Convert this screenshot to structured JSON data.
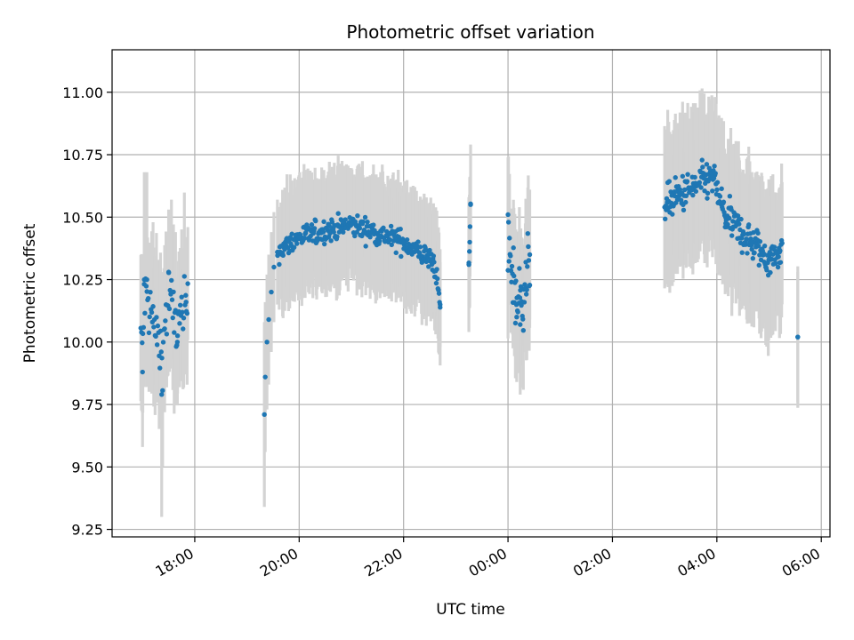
{
  "chart_data": {
    "type": "scatter",
    "title": "Photometric offset variation",
    "xlabel": "UTC time",
    "ylabel": "Photometric offset",
    "x_unit": "UTC time (HH:MM, observing night crossing midnight)",
    "xlim": [
      "16:25",
      "06:10"
    ],
    "ylim": [
      9.22,
      11.17
    ],
    "x_ticks": [
      "18:00",
      "20:00",
      "22:00",
      "00:00",
      "02:00",
      "04:00",
      "06:00"
    ],
    "y_ticks": [
      "9.25",
      "9.50",
      "9.75",
      "10.00",
      "10.25",
      "10.50",
      "10.75",
      "11.00"
    ],
    "grid": true,
    "legend": "none",
    "colors": {
      "points": "#1f77b4",
      "errorbars": "#d3d3d3",
      "grid": "#b0b0b0"
    },
    "segments": [
      {
        "x_start": "16:58",
        "x_end": "17:52",
        "mean": 10.1,
        "amplitude": 0.14,
        "err": 0.26,
        "n": 70,
        "points": [
          {
            "x": "17:00",
            "y": 9.88,
            "err": 0.3
          },
          {
            "x": "17:02",
            "y": 10.25,
            "err": 0.43
          },
          {
            "x": "17:05",
            "y": 10.25,
            "err": 0.43
          },
          {
            "x": "17:22",
            "y": 9.79,
            "err": 0.49
          },
          {
            "x": "17:30",
            "y": 10.28,
            "err": 0.25
          },
          {
            "x": "17:40",
            "y": 10.0,
            "err": 0.25
          },
          {
            "x": "17:50",
            "y": 10.16,
            "err": 0.26
          }
        ]
      },
      {
        "x_start": "19:20",
        "x_end": "22:42",
        "mean": 10.43,
        "amplitude": 0.05,
        "err": 0.2,
        "n": 320,
        "ramp": [
          {
            "x": "19:20",
            "y": 9.71,
            "err": 0.37
          },
          {
            "x": "19:21",
            "y": 9.86,
            "err": 0.3
          },
          {
            "x": "19:23",
            "y": 10.0,
            "err": 0.27
          },
          {
            "x": "19:25",
            "y": 10.09,
            "err": 0.26
          },
          {
            "x": "19:28",
            "y": 10.2,
            "err": 0.24
          },
          {
            "x": "19:31",
            "y": 10.3,
            "err": 0.22
          },
          {
            "x": "19:35",
            "y": 10.36,
            "err": 0.21
          }
        ],
        "points": [
          {
            "x": "20:00",
            "y": 10.42,
            "err": 0.2
          },
          {
            "x": "21:00",
            "y": 10.47,
            "err": 0.2
          },
          {
            "x": "22:00",
            "y": 10.4,
            "err": 0.2
          },
          {
            "x": "22:35",
            "y": 10.32,
            "err": 0.2
          },
          {
            "x": "22:42",
            "y": 10.15,
            "err": 0.17
          }
        ]
      },
      {
        "x_start": "23:15",
        "x_end": "23:17",
        "mean": 10.4,
        "amplitude": 0.02,
        "err": 0.2,
        "n": 4,
        "points": [
          {
            "x": "23:15",
            "y": 10.31,
            "err": 0.27
          },
          {
            "x": "23:16",
            "y": 10.4,
            "err": 0.26
          },
          {
            "x": "23:17",
            "y": 10.55,
            "err": 0.0
          }
        ]
      },
      {
        "x_start": "00:00",
        "x_end": "00:25",
        "mean": 10.25,
        "amplitude": 0.15,
        "err": 0.22,
        "n": 45,
        "points": [
          {
            "x": "00:00",
            "y": 10.51,
            "err": 0.23
          },
          {
            "x": "00:10",
            "y": 10.1,
            "err": 0.26
          },
          {
            "x": "00:14",
            "y": 10.07,
            "err": 0.28
          },
          {
            "x": "00:25",
            "y": 10.35,
            "err": 0.26
          }
        ]
      },
      {
        "x_start": "03:00",
        "x_end": "05:15",
        "mean": 10.5,
        "amplitude": 0.08,
        "err": 0.25,
        "n": 230,
        "points": [
          {
            "x": "03:03",
            "y": 10.56,
            "err": 0.24
          },
          {
            "x": "03:55",
            "y": 10.66,
            "err": 0.32
          },
          {
            "x": "04:10",
            "y": 10.5,
            "err": 0.25
          },
          {
            "x": "05:00",
            "y": 10.33,
            "err": 0.25
          },
          {
            "x": "05:12",
            "y": 10.36,
            "err": 0.25
          }
        ]
      },
      {
        "x_start": "05:33",
        "x_end": "05:33",
        "mean": 10.02,
        "amplitude": 0.0,
        "err": 0.26,
        "n": 1,
        "points": [
          {
            "x": "05:33",
            "y": 10.02,
            "err": 0.26
          }
        ]
      }
    ]
  }
}
